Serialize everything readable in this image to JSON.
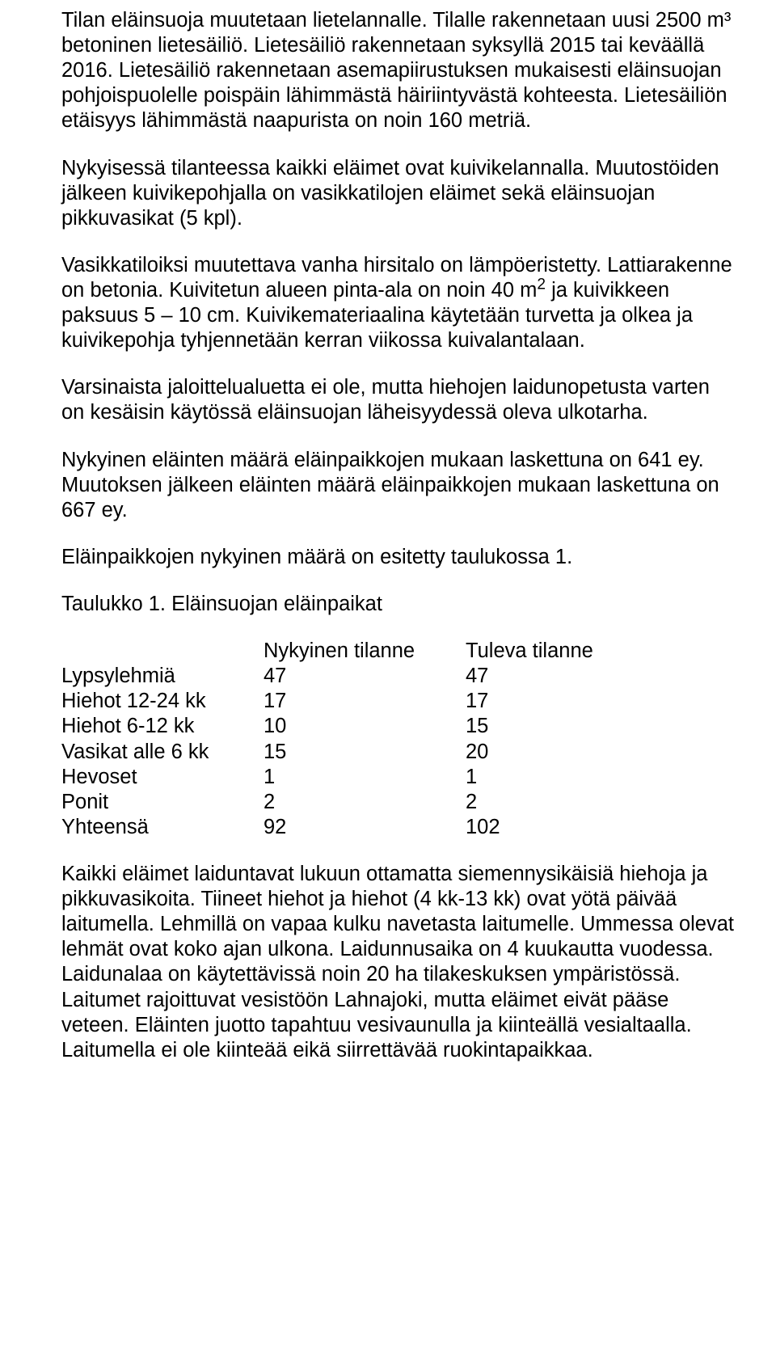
{
  "paragraphs": {
    "p1": "Tilan eläinsuoja muutetaan lietelannalle. Tilalle rakennetaan uusi 2500 m³ betoninen lietesäiliö. Lietesäiliö rakennetaan syksyllä 2015 tai keväällä 2016. Lietesäiliö rakennetaan asemapiirustuksen mukaisesti eläinsuojan pohjoispuolelle poispäin lähimmästä häiriintyvästä kohteesta. Lietesäiliön etäisyys lähimmästä naapurista on noin 160 metriä.",
    "p2": "Nykyisessä tilanteessa kaikki eläimet ovat kuivikelannalla. Muutostöiden jälkeen kuivikepohjalla on vasikkatilojen eläimet sekä eläinsuojan pikkuvasikat (5 kpl).",
    "p3_a": "Vasikkatiloiksi muutettava vanha hirsitalo on lämpöeristetty. Lattiarakenne on betonia. Kuivitetun alueen pinta-ala on noin 40 m",
    "p3_sup": "2",
    "p3_b": " ja kuivikkeen paksuus 5 – 10 cm. Kuivikemateriaalina käytetään turvetta ja olkea ja kuivikepohja tyhjennetään kerran viikossa kuivalantalaan.",
    "p4": "Varsinaista jaloittelualuetta ei ole, mutta hiehojen laidunopetusta varten on kesäisin käytössä eläinsuojan läheisyydessä oleva ulkotarha.",
    "p5": "Nykyinen eläinten määrä eläinpaikkojen mukaan laskettuna on 641 ey. Muutoksen jälkeen eläinten määrä eläinpaikkojen mukaan laskettuna on 667 ey.",
    "p6": "Eläinpaikkojen nykyinen määrä on esitetty taulukossa 1.",
    "p7": "Taulukko 1. Eläinsuojan eläinpaikat",
    "p8": "Kaikki eläimet laiduntavat lukuun ottamatta siemennysikäisiä hiehoja ja pikkuvasikoita. Tiineet hiehot ja hiehot (4 kk-13 kk) ovat yötä päivää laitumella. Lehmillä on vapaa kulku navetasta laitumelle. Ummessa olevat lehmät ovat koko ajan ulkona. Laidunnusaika on 4 kuukautta vuodessa. Laidunalaa on käytettävissä noin 20 ha tilakeskuksen ympäristössä. Laitumet rajoittuvat vesistöön Lahnajoki, mutta eläimet eivät pääse veteen. Eläinten juotto tapahtuu vesivaunulla ja kiinteällä vesialtaalla. Laitumella ei ole kiinteää eikä siirrettävää ruokintapaikkaa."
  },
  "table": {
    "header_current": "Nykyinen tilanne",
    "header_future": "Tuleva tilanne",
    "rows": [
      {
        "label": "Lypsylehmiä",
        "current": "47",
        "future": "47"
      },
      {
        "label": "Hiehot 12-24 kk",
        "current": "17",
        "future": "17"
      },
      {
        "label": "Hiehot 6-12 kk",
        "current": "10",
        "future": "15"
      },
      {
        "label": "Vasikat alle 6 kk",
        "current": "15",
        "future": "20"
      },
      {
        "label": "Hevoset",
        "current": "1",
        "future": "1"
      },
      {
        "label": "Ponit",
        "current": "2",
        "future": "2"
      },
      {
        "label": "Yhteensä",
        "current": "92",
        "future": "102"
      }
    ]
  }
}
